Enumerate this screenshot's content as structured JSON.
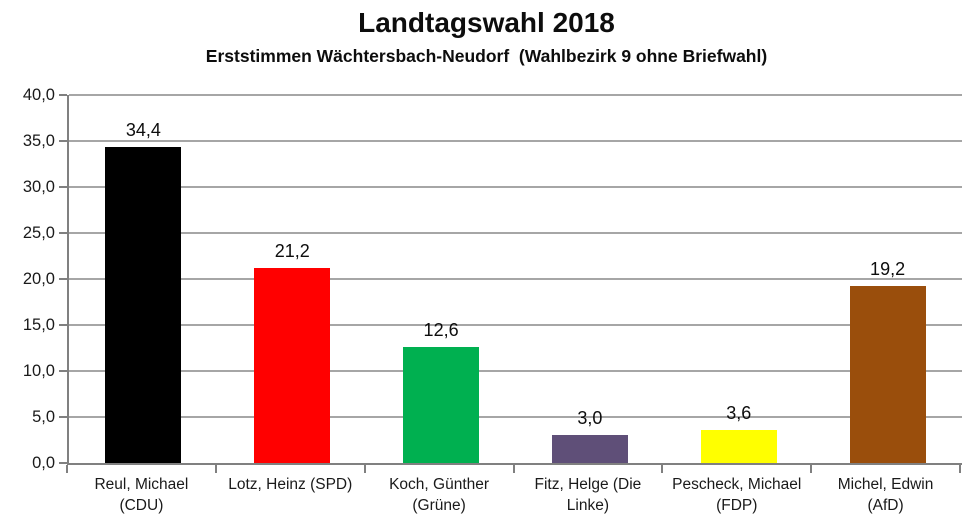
{
  "chart": {
    "title": "Landtagswahl 2018",
    "subtitle": "Erststimmen Wächtersbach-Neudorf  (Wahlbezirk 9 ohne Briefwahl)"
  },
  "chart_data": {
    "type": "bar",
    "title": "Landtagswahl 2018",
    "subtitle": "Erststimmen Wächtersbach-Neudorf  (Wahlbezirk 9 ohne Briefwahl)",
    "categories": [
      "Reul, Michael (CDU)",
      "Lotz, Heinz (SPD)",
      "Koch, Günther (Grüne)",
      "Fitz, Helge (Die Linke)",
      "Pescheck, Michael (FDP)",
      "Michel, Edwin (AfD)"
    ],
    "parties": [
      "CDU",
      "SPD",
      "Grüne",
      "Die Linke",
      "FDP",
      "AfD"
    ],
    "values": [
      34.4,
      21.2,
      12.6,
      3.0,
      3.6,
      19.2
    ],
    "value_labels": [
      "34,4",
      "21,2",
      "12,6",
      "3,0",
      "3,6",
      "19,2"
    ],
    "bar_colors": [
      "#000000",
      "#ff0000",
      "#00b050",
      "#5f4f78",
      "#ffff00",
      "#9a4e0c"
    ],
    "xlabel": "",
    "ylabel": "",
    "ylim": [
      0,
      40
    ],
    "ytick_step": 5,
    "ytick_labels": [
      "0,0",
      "5,0",
      "10,0",
      "15,0",
      "20,0",
      "25,0",
      "30,0",
      "35,0",
      "40,0"
    ],
    "grid": true,
    "legend": false,
    "gridline_color": "#a6a6a6",
    "axis_color": "#808080",
    "background_color": "#ffffff"
  }
}
